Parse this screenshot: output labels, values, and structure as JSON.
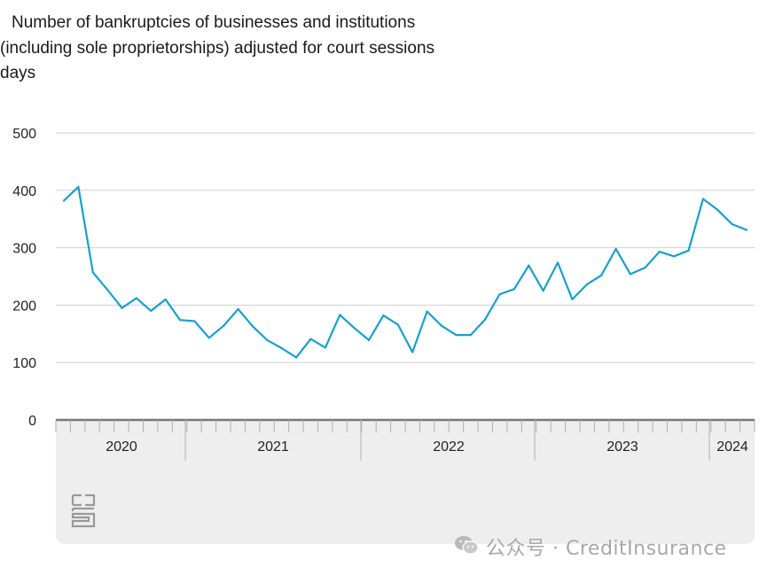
{
  "title": {
    "line1": "Number of bankruptcies of businesses and institutions",
    "line2": "(including sole proprietorships) adjusted for court sessions",
    "line3": "days"
  },
  "watermark": {
    "text": "公众号 · CreditInsurance",
    "icon": "wechat-icon"
  },
  "logo": {
    "name": "cbs-logo"
  },
  "colors": {
    "line": "#1a9fcb",
    "grid": "#d0d0d0",
    "axis": "#777777",
    "band": "#eeeeee",
    "tick_text": "#222222"
  },
  "chart_data": {
    "type": "line",
    "title": "Number of bankruptcies of businesses and institutions (including sole proprietorships) adjusted for court sessions days",
    "xlabel": "",
    "ylabel": "",
    "ylim": [
      0,
      500
    ],
    "yticks": [
      0,
      100,
      200,
      300,
      400,
      500
    ],
    "grid": true,
    "x_labels": [
      "2020",
      "2021",
      "2022",
      "2023",
      "2024"
    ],
    "series": [
      {
        "values": [
          382,
          406,
          257,
          227,
          195,
          212,
          190,
          210,
          174,
          172,
          143,
          164,
          193,
          163,
          139,
          125,
          109,
          141,
          126,
          183,
          160,
          139,
          182,
          166,
          118,
          189,
          164,
          148,
          148,
          175,
          219,
          228,
          269,
          225,
          274,
          210,
          236,
          252,
          298,
          254,
          265,
          293,
          285,
          295,
          385,
          366,
          341,
          331
        ]
      }
    ]
  }
}
